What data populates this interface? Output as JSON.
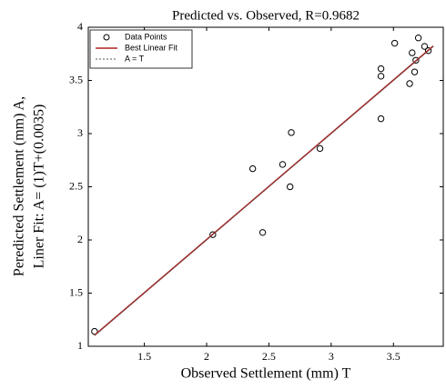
{
  "chart_data": {
    "type": "scatter",
    "title": "Predicted vs. Observed, R=0.9682",
    "x_label": "Observed Settlement (mm) T",
    "y_label": [
      "Peredicted Settlement (mm) A,",
      "Liner Fit: A= (1)T+(0.0035)"
    ],
    "xlim": [
      1.05,
      3.9
    ],
    "ylim": [
      1,
      4
    ],
    "xticks": [
      1.5,
      2,
      2.5,
      3,
      3.5
    ],
    "yticks": [
      1,
      1.5,
      2,
      2.5,
      3,
      3.5,
      4
    ],
    "legend": "upper left",
    "series": [
      {
        "name": "Data Points",
        "type": "scatter",
        "color": "#000000",
        "x": [
          1.1,
          2.05,
          2.45,
          2.37,
          2.61,
          2.68,
          2.67,
          2.91,
          3.4,
          3.4,
          3.4,
          3.51,
          3.63,
          3.65,
          3.68,
          3.67,
          3.7,
          3.75,
          3.78
        ],
        "values": [
          1.14,
          2.05,
          2.07,
          2.67,
          2.71,
          3.01,
          2.5,
          2.86,
          3.14,
          3.54,
          3.61,
          3.85,
          3.47,
          3.76,
          3.69,
          3.58,
          3.9,
          3.82,
          3.78
        ]
      },
      {
        "name": "Best Linear Fit",
        "type": "line",
        "color": "#b22222",
        "x": [
          1.1,
          3.82
        ],
        "values": [
          1.1035,
          3.8235
        ]
      },
      {
        "name": "A = T",
        "type": "dashed",
        "color": "#555555",
        "x": [
          1.1,
          3.82
        ],
        "values": [
          1.1,
          3.82
        ]
      }
    ]
  }
}
